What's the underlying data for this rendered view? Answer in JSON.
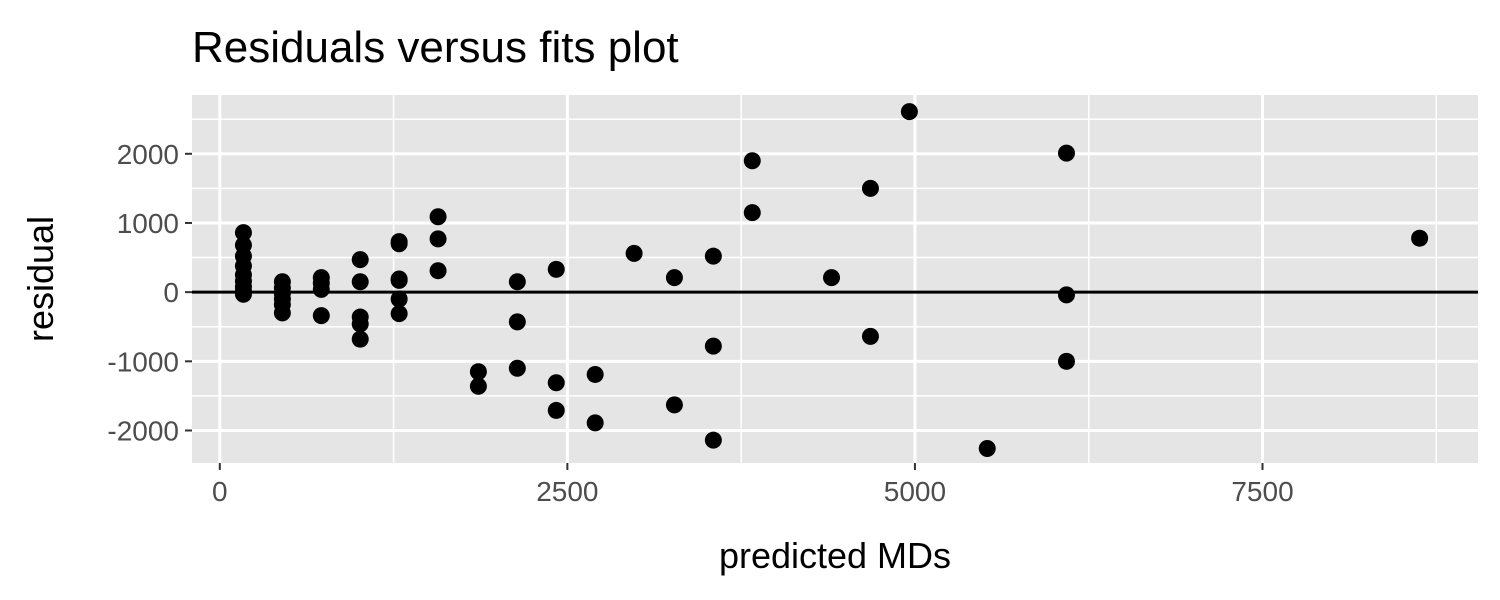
{
  "chart_data": {
    "type": "scatter",
    "title": "Residuals versus fits plot",
    "xlabel": "predicted MDs",
    "ylabel": "residual",
    "xlim": [
      -200,
      9050
    ],
    "ylim": [
      -2470,
      2850
    ],
    "x_ticks": [
      0,
      2500,
      5000,
      7500
    ],
    "x_tick_labels": [
      "0",
      "2500",
      "5000",
      "7500"
    ],
    "y_ticks": [
      -2000,
      -1000,
      0,
      1000,
      2000
    ],
    "y_tick_labels": [
      "-2000",
      "-1000",
      "0",
      "1000",
      "2000"
    ],
    "grid": true,
    "reference_line_y": 0,
    "colors": {
      "panel": "#e5e5e5",
      "grid": "#ffffff",
      "point": "#000000",
      "reference_line": "#000000"
    },
    "points": [
      {
        "x": 170,
        "y": 860
      },
      {
        "x": 170,
        "y": 680
      },
      {
        "x": 170,
        "y": 520
      },
      {
        "x": 170,
        "y": 380
      },
      {
        "x": 170,
        "y": 250
      },
      {
        "x": 170,
        "y": 160
      },
      {
        "x": 170,
        "y": 80
      },
      {
        "x": 170,
        "y": 20
      },
      {
        "x": 170,
        "y": -30
      },
      {
        "x": 450,
        "y": 150
      },
      {
        "x": 450,
        "y": 60
      },
      {
        "x": 450,
        "y": -20
      },
      {
        "x": 450,
        "y": -100
      },
      {
        "x": 450,
        "y": -180
      },
      {
        "x": 450,
        "y": -300
      },
      {
        "x": 730,
        "y": 210
      },
      {
        "x": 730,
        "y": 130
      },
      {
        "x": 730,
        "y": 40
      },
      {
        "x": 730,
        "y": -340
      },
      {
        "x": 1010,
        "y": 470
      },
      {
        "x": 1010,
        "y": 150
      },
      {
        "x": 1010,
        "y": -360
      },
      {
        "x": 1010,
        "y": -460
      },
      {
        "x": 1010,
        "y": -680
      },
      {
        "x": 1290,
        "y": 730
      },
      {
        "x": 1290,
        "y": 700
      },
      {
        "x": 1290,
        "y": 190
      },
      {
        "x": 1290,
        "y": 170
      },
      {
        "x": 1290,
        "y": -100
      },
      {
        "x": 1290,
        "y": -310
      },
      {
        "x": 1570,
        "y": 1090
      },
      {
        "x": 1570,
        "y": 770
      },
      {
        "x": 1570,
        "y": 310
      },
      {
        "x": 1860,
        "y": -1150
      },
      {
        "x": 1860,
        "y": -1360
      },
      {
        "x": 2140,
        "y": 150
      },
      {
        "x": 2140,
        "y": -430
      },
      {
        "x": 2140,
        "y": -1100
      },
      {
        "x": 2420,
        "y": 330
      },
      {
        "x": 2420,
        "y": -1310
      },
      {
        "x": 2420,
        "y": -1710
      },
      {
        "x": 2700,
        "y": -1190
      },
      {
        "x": 2700,
        "y": -1890
      },
      {
        "x": 2980,
        "y": 560
      },
      {
        "x": 3270,
        "y": 210
      },
      {
        "x": 3270,
        "y": -1630
      },
      {
        "x": 3550,
        "y": 520
      },
      {
        "x": 3550,
        "y": -780
      },
      {
        "x": 3550,
        "y": -2140
      },
      {
        "x": 3830,
        "y": 1900
      },
      {
        "x": 3830,
        "y": 1150
      },
      {
        "x": 4400,
        "y": 210
      },
      {
        "x": 4680,
        "y": 1500
      },
      {
        "x": 4680,
        "y": -640
      },
      {
        "x": 4960,
        "y": 2610
      },
      {
        "x": 5520,
        "y": -2260
      },
      {
        "x": 6090,
        "y": 2010
      },
      {
        "x": 6090,
        "y": -40
      },
      {
        "x": 6090,
        "y": -1000
      },
      {
        "x": 8630,
        "y": 780
      }
    ]
  }
}
